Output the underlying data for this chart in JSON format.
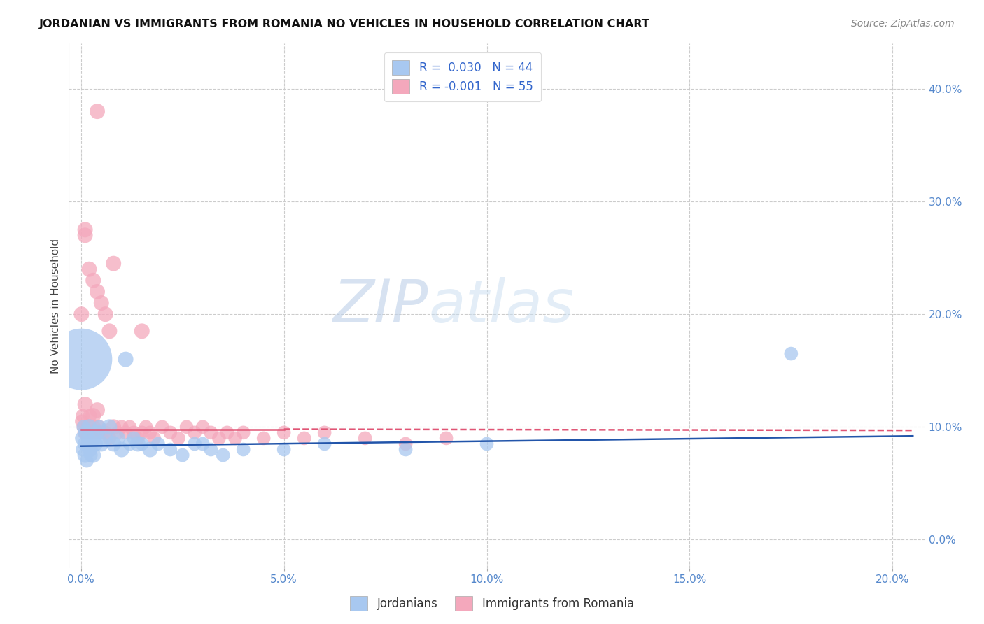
{
  "title": "JORDANIAN VS IMMIGRANTS FROM ROMANIA NO VEHICLES IN HOUSEHOLD CORRELATION CHART",
  "source": "Source: ZipAtlas.com",
  "xlabel_ticks": [
    "0.0%",
    "5.0%",
    "10.0%",
    "15.0%",
    "20.0%"
  ],
  "xlabel_tick_vals": [
    0.0,
    0.05,
    0.1,
    0.15,
    0.2
  ],
  "ylabel": "No Vehicles in Household",
  "ylabel_ticks": [
    "0.0%",
    "10.0%",
    "20.0%",
    "30.0%",
    "40.0%"
  ],
  "ylabel_tick_vals": [
    0.0,
    0.1,
    0.2,
    0.3,
    0.4
  ],
  "xlim": [
    -0.003,
    0.208
  ],
  "ylim": [
    -0.025,
    0.44
  ],
  "color_blue": "#A8C8F0",
  "color_pink": "#F4A8BC",
  "trendline_blue": "#2255AA",
  "trendline_pink": "#E05575",
  "watermark_zip": "ZIP",
  "watermark_atlas": "atlas",
  "jordanians": {
    "x": [
      0.0002,
      0.0004,
      0.0006,
      0.0008,
      0.001,
      0.0012,
      0.0014,
      0.0016,
      0.0018,
      0.002,
      0.0022,
      0.0024,
      0.0026,
      0.003,
      0.0032,
      0.0035,
      0.004,
      0.0045,
      0.005,
      0.006,
      0.007,
      0.008,
      0.009,
      0.01,
      0.011,
      0.012,
      0.013,
      0.014,
      0.015,
      0.017,
      0.019,
      0.022,
      0.025,
      0.028,
      0.03,
      0.032,
      0.035,
      0.04,
      0.05,
      0.06,
      0.08,
      0.1,
      0.175,
      0.0001
    ],
    "y": [
      0.09,
      0.08,
      0.1,
      0.085,
      0.075,
      0.095,
      0.07,
      0.085,
      0.09,
      0.1,
      0.08,
      0.075,
      0.085,
      0.075,
      0.09,
      0.085,
      0.095,
      0.1,
      0.085,
      0.09,
      0.1,
      0.085,
      0.09,
      0.08,
      0.16,
      0.085,
      0.09,
      0.085,
      0.085,
      0.08,
      0.085,
      0.08,
      0.075,
      0.085,
      0.085,
      0.08,
      0.075,
      0.08,
      0.08,
      0.085,
      0.08,
      0.085,
      0.165,
      0.16
    ],
    "sizes": [
      20,
      20,
      20,
      20,
      25,
      25,
      20,
      20,
      20,
      25,
      25,
      20,
      20,
      25,
      20,
      25,
      25,
      20,
      25,
      25,
      25,
      25,
      25,
      25,
      25,
      20,
      20,
      25,
      20,
      25,
      20,
      20,
      20,
      20,
      20,
      20,
      20,
      20,
      20,
      20,
      20,
      20,
      20,
      400
    ]
  },
  "romanians": {
    "x": [
      0.0002,
      0.0004,
      0.0006,
      0.0008,
      0.001,
      0.0012,
      0.0015,
      0.002,
      0.0022,
      0.0025,
      0.003,
      0.0032,
      0.0035,
      0.004,
      0.0045,
      0.005,
      0.006,
      0.007,
      0.008,
      0.009,
      0.01,
      0.011,
      0.012,
      0.013,
      0.014,
      0.015,
      0.016,
      0.017,
      0.018,
      0.02,
      0.022,
      0.024,
      0.026,
      0.028,
      0.03,
      0.032,
      0.034,
      0.036,
      0.038,
      0.04,
      0.045,
      0.05,
      0.055,
      0.06,
      0.07,
      0.08,
      0.09,
      0.0001,
      0.001,
      0.002,
      0.003,
      0.004,
      0.005,
      0.006,
      0.007
    ],
    "y": [
      0.105,
      0.11,
      0.1,
      0.095,
      0.12,
      0.095,
      0.1,
      0.1,
      0.11,
      0.095,
      0.11,
      0.1,
      0.095,
      0.115,
      0.1,
      0.095,
      0.095,
      0.09,
      0.1,
      0.095,
      0.1,
      0.095,
      0.1,
      0.095,
      0.09,
      0.095,
      0.1,
      0.095,
      0.09,
      0.1,
      0.095,
      0.09,
      0.1,
      0.095,
      0.1,
      0.095,
      0.09,
      0.095,
      0.09,
      0.095,
      0.09,
      0.095,
      0.09,
      0.095,
      0.09,
      0.085,
      0.09,
      0.2,
      0.27,
      0.24,
      0.23,
      0.22,
      0.21,
      0.2,
      0.185
    ],
    "sizes": [
      20,
      20,
      20,
      20,
      25,
      20,
      20,
      25,
      20,
      20,
      25,
      20,
      20,
      25,
      20,
      20,
      20,
      20,
      25,
      20,
      20,
      20,
      20,
      20,
      20,
      20,
      20,
      20,
      20,
      20,
      20,
      20,
      20,
      20,
      20,
      20,
      20,
      20,
      20,
      20,
      20,
      20,
      20,
      20,
      20,
      20,
      20,
      25,
      25,
      25,
      25,
      25,
      25,
      25,
      25
    ]
  },
  "extra_pink_outliers": {
    "x": [
      0.004,
      0.001,
      0.008,
      0.015
    ],
    "y": [
      0.38,
      0.275,
      0.245,
      0.185
    ],
    "sizes": [
      25,
      25,
      25,
      25
    ]
  }
}
